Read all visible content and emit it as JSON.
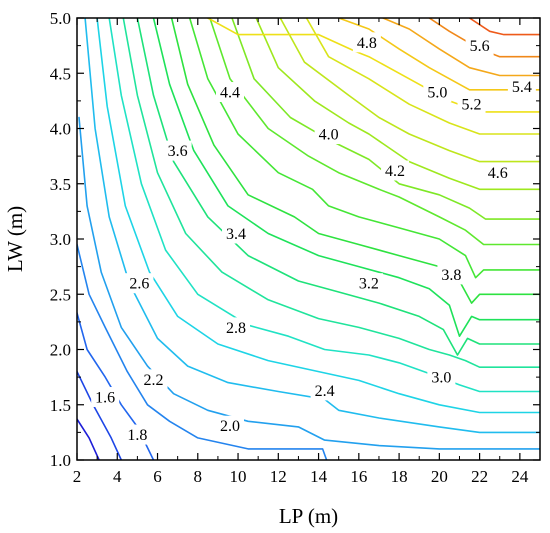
{
  "chart_data": {
    "type": "contour",
    "title": "",
    "xlabel": "LP (m)",
    "ylabel": "LW (m)",
    "xlim": [
      2,
      25
    ],
    "ylim": [
      1.0,
      5.0
    ],
    "x_ticks": [
      "2",
      "4",
      "6",
      "8",
      "10",
      "12",
      "14",
      "16",
      "18",
      "20",
      "22",
      "24"
    ],
    "y_ticks": [
      "1.0",
      "1.5",
      "2.0",
      "2.5",
      "3.0",
      "3.5",
      "4.0",
      "4.5",
      "5.0"
    ],
    "grid": false,
    "colormap": "blue-cyan-green-yellow-red",
    "level_step": 0.2,
    "contours": [
      {
        "level": 1.2,
        "color": "#1e1ed8",
        "points": [
          [
            2.0,
            1.37
          ],
          [
            2.6,
            1.2
          ],
          [
            3.1,
            1.0
          ]
        ]
      },
      {
        "level": 1.4,
        "color": "#1e46e6",
        "points": [
          [
            2.0,
            1.8
          ],
          [
            2.8,
            1.5
          ],
          [
            3.7,
            1.2
          ],
          [
            4.2,
            1.0
          ]
        ]
      },
      {
        "level": 1.6,
        "color": "#2266ee",
        "points": [
          [
            2.0,
            2.33
          ],
          [
            2.5,
            2.0
          ],
          [
            3.4,
            1.75
          ],
          [
            4.2,
            1.5
          ],
          [
            5.0,
            1.3
          ],
          [
            5.8,
            1.0
          ]
        ]
      },
      {
        "level": 1.8,
        "color": "#2484ee",
        "points": [
          [
            2.0,
            2.95
          ],
          [
            2.6,
            2.5
          ],
          [
            3.4,
            2.2
          ],
          [
            4.5,
            1.8
          ],
          [
            5.5,
            1.5
          ],
          [
            6.6,
            1.35
          ],
          [
            8.0,
            1.2
          ],
          [
            10.5,
            1.1
          ],
          [
            14.2,
            1.1
          ],
          [
            14.4,
            1.0
          ]
        ]
      },
      {
        "level": 2.0,
        "color": "#22a0ee",
        "points": [
          [
            2.1,
            4.1
          ],
          [
            2.5,
            3.3
          ],
          [
            3.2,
            2.7
          ],
          [
            4.2,
            2.2
          ],
          [
            5.5,
            1.85
          ],
          [
            6.8,
            1.6
          ],
          [
            8.5,
            1.45
          ],
          [
            10.5,
            1.35
          ],
          [
            13.0,
            1.3
          ],
          [
            14.3,
            1.18
          ],
          [
            17.0,
            1.13
          ],
          [
            20.0,
            1.1
          ],
          [
            25.0,
            1.1
          ]
        ]
      },
      {
        "level": 2.2,
        "color": "#20bcee",
        "points": [
          [
            2.4,
            5.0
          ],
          [
            2.9,
            4.0
          ],
          [
            3.6,
            3.2
          ],
          [
            4.6,
            2.6
          ],
          [
            6.0,
            2.1
          ],
          [
            7.5,
            1.85
          ],
          [
            9.5,
            1.7
          ],
          [
            12.0,
            1.62
          ],
          [
            14.3,
            1.55
          ],
          [
            15.0,
            1.45
          ],
          [
            17.0,
            1.38
          ],
          [
            20.0,
            1.3
          ],
          [
            22.0,
            1.25
          ],
          [
            25.0,
            1.25
          ]
        ]
      },
      {
        "level": 2.4,
        "color": "#1ed4e6",
        "points": [
          [
            3.0,
            5.0
          ],
          [
            3.5,
            4.2
          ],
          [
            4.4,
            3.3
          ],
          [
            5.6,
            2.7
          ],
          [
            7.0,
            2.3
          ],
          [
            9.0,
            2.05
          ],
          [
            11.5,
            1.9
          ],
          [
            14.0,
            1.8
          ],
          [
            16.0,
            1.72
          ],
          [
            18.0,
            1.6
          ],
          [
            20.0,
            1.5
          ],
          [
            22.0,
            1.43
          ],
          [
            25.0,
            1.43
          ]
        ]
      },
      {
        "level": 2.6,
        "color": "#20e2c4",
        "points": [
          [
            3.6,
            5.0
          ],
          [
            4.2,
            4.3
          ],
          [
            5.2,
            3.5
          ],
          [
            6.4,
            2.9
          ],
          [
            8.0,
            2.5
          ],
          [
            10.5,
            2.22
          ],
          [
            12.5,
            2.12
          ],
          [
            14.3,
            2.0
          ],
          [
            16.5,
            1.95
          ],
          [
            18.0,
            1.88
          ],
          [
            20.0,
            1.75
          ],
          [
            21.0,
            1.68
          ],
          [
            22.0,
            1.62
          ],
          [
            25.0,
            1.62
          ]
        ]
      },
      {
        "level": 2.8,
        "color": "#20e49c",
        "points": [
          [
            4.3,
            5.0
          ],
          [
            5.0,
            4.3
          ],
          [
            6.0,
            3.6
          ],
          [
            7.4,
            3.05
          ],
          [
            9.2,
            2.7
          ],
          [
            11.5,
            2.45
          ],
          [
            14.0,
            2.28
          ],
          [
            16.0,
            2.2
          ],
          [
            18.0,
            2.1
          ],
          [
            19.5,
            2.0
          ],
          [
            20.5,
            1.95
          ],
          [
            21.3,
            1.9
          ],
          [
            22.0,
            1.84
          ],
          [
            25.0,
            1.84
          ]
        ]
      },
      {
        "level": 3.0,
        "color": "#1ee27a",
        "points": [
          [
            5.0,
            5.0
          ],
          [
            5.8,
            4.3
          ],
          [
            6.8,
            3.7
          ],
          [
            8.5,
            3.2
          ],
          [
            10.5,
            2.85
          ],
          [
            13.0,
            2.62
          ],
          [
            15.0,
            2.52
          ],
          [
            17.0,
            2.42
          ],
          [
            19.0,
            2.3
          ],
          [
            20.2,
            2.18
          ],
          [
            20.9,
            1.95
          ],
          [
            21.4,
            2.1
          ],
          [
            22.0,
            2.05
          ],
          [
            25.0,
            2.05
          ]
        ]
      },
      {
        "level": 3.2,
        "color": "#1ee25a",
        "points": [
          [
            5.8,
            5.0
          ],
          [
            6.6,
            4.4
          ],
          [
            7.8,
            3.8
          ],
          [
            9.5,
            3.3
          ],
          [
            11.5,
            3.05
          ],
          [
            14.0,
            2.85
          ],
          [
            16.0,
            2.75
          ],
          [
            18.0,
            2.65
          ],
          [
            19.5,
            2.55
          ],
          [
            20.5,
            2.4
          ],
          [
            21.0,
            2.12
          ],
          [
            21.6,
            2.3
          ],
          [
            22.0,
            2.27
          ],
          [
            25.0,
            2.27
          ]
        ]
      },
      {
        "level": 3.4,
        "color": "#2ee240",
        "points": [
          [
            6.7,
            5.0
          ],
          [
            7.5,
            4.4
          ],
          [
            8.8,
            3.85
          ],
          [
            10.5,
            3.4
          ],
          [
            12.8,
            3.2
          ],
          [
            14.0,
            3.05
          ],
          [
            16.0,
            2.95
          ],
          [
            18.0,
            2.85
          ],
          [
            20.0,
            2.75
          ],
          [
            21.0,
            2.62
          ],
          [
            21.6,
            2.42
          ],
          [
            22.0,
            2.5
          ],
          [
            25.0,
            2.5
          ]
        ]
      },
      {
        "level": 3.6,
        "color": "#44e636",
        "points": [
          [
            7.6,
            5.0
          ],
          [
            8.5,
            4.45
          ],
          [
            10.0,
            3.95
          ],
          [
            12.0,
            3.6
          ],
          [
            13.7,
            3.45
          ],
          [
            14.5,
            3.3
          ],
          [
            16.0,
            3.2
          ],
          [
            18.0,
            3.1
          ],
          [
            20.0,
            3.0
          ],
          [
            21.3,
            2.85
          ],
          [
            21.8,
            2.65
          ],
          [
            22.2,
            2.72
          ],
          [
            25.0,
            2.72
          ]
        ]
      },
      {
        "level": 3.8,
        "color": "#5ee82e",
        "points": [
          [
            8.6,
            5.0
          ],
          [
            9.6,
            4.45
          ],
          [
            11.5,
            4.0
          ],
          [
            13.5,
            3.75
          ],
          [
            15.0,
            3.6
          ],
          [
            17.0,
            3.45
          ],
          [
            18.0,
            3.38
          ],
          [
            20.0,
            3.2
          ],
          [
            21.3,
            3.08
          ],
          [
            22.2,
            2.95
          ],
          [
            25.0,
            2.95
          ]
        ]
      },
      {
        "level": 4.0,
        "color": "#7ee826",
        "points": [
          [
            9.7,
            5.0
          ],
          [
            10.8,
            4.45
          ],
          [
            12.6,
            4.1
          ],
          [
            14.5,
            3.9
          ],
          [
            16.5,
            3.72
          ],
          [
            18.0,
            3.5
          ],
          [
            20.0,
            3.4
          ],
          [
            21.5,
            3.28
          ],
          [
            22.3,
            3.18
          ],
          [
            25.0,
            3.18
          ]
        ]
      },
      {
        "level": 4.2,
        "color": "#9ee81e",
        "points": [
          [
            10.9,
            5.0
          ],
          [
            12.0,
            4.55
          ],
          [
            13.8,
            4.25
          ],
          [
            15.5,
            4.05
          ],
          [
            16.5,
            3.95
          ],
          [
            18.5,
            3.7
          ],
          [
            20.5,
            3.55
          ],
          [
            22.0,
            3.45
          ],
          [
            25.0,
            3.45
          ]
        ]
      },
      {
        "level": 4.4,
        "color": "#bee61c",
        "points": [
          [
            12.1,
            5.0
          ],
          [
            13.3,
            4.6
          ],
          [
            15.5,
            4.3
          ],
          [
            17.0,
            4.1
          ],
          [
            18.5,
            3.95
          ],
          [
            20.5,
            3.8
          ],
          [
            22.0,
            3.7
          ],
          [
            25.0,
            3.7
          ]
        ]
      },
      {
        "level": 4.6,
        "color": "#d8e41a",
        "points": [
          [
            13.4,
            5.0
          ],
          [
            14.5,
            4.65
          ],
          [
            16.5,
            4.45
          ],
          [
            18.5,
            4.22
          ],
          [
            20.5,
            4.05
          ],
          [
            22.0,
            3.95
          ],
          [
            25.0,
            3.95
          ]
        ]
      },
      {
        "level": 4.8,
        "color": "#eee018",
        "points": [
          [
            8.5,
            5.0
          ],
          [
            10.0,
            4.85
          ],
          [
            13.0,
            4.85
          ],
          [
            14.0,
            4.85
          ],
          [
            15.8,
            4.7
          ],
          [
            16.5,
            4.65
          ],
          [
            18.5,
            4.45
          ],
          [
            20.5,
            4.25
          ],
          [
            22.0,
            4.15
          ],
          [
            25.0,
            4.15
          ]
        ]
      },
      {
        "level": 5.0,
        "color": "#f4c818",
        "points": [
          [
            15.0,
            5.0
          ],
          [
            16.5,
            4.9
          ],
          [
            18.0,
            4.72
          ],
          [
            19.5,
            4.55
          ],
          [
            21.5,
            4.35
          ],
          [
            25.0,
            4.35
          ]
        ]
      },
      {
        "level": 5.2,
        "color": "#f4a81a",
        "points": [
          [
            17.2,
            5.0
          ],
          [
            18.5,
            4.9
          ],
          [
            20.0,
            4.72
          ],
          [
            21.5,
            4.55
          ],
          [
            23.0,
            4.48
          ],
          [
            25.0,
            4.48
          ]
        ]
      },
      {
        "level": 5.4,
        "color": "#f0881a",
        "points": [
          [
            19.5,
            5.0
          ],
          [
            20.5,
            4.88
          ],
          [
            22.0,
            4.72
          ],
          [
            23.0,
            4.65
          ],
          [
            25.0,
            4.65
          ]
        ]
      },
      {
        "level": 5.6,
        "color": "#ee5a1a",
        "points": [
          [
            21.5,
            5.0
          ],
          [
            22.5,
            4.88
          ],
          [
            23.2,
            4.85
          ],
          [
            25.0,
            4.85
          ]
        ]
      }
    ],
    "contour_labels": [
      {
        "text": "1.6",
        "x": 3.4,
        "y": 1.57
      },
      {
        "text": "1.8",
        "x": 5.0,
        "y": 1.23
      },
      {
        "text": "2.0",
        "x": 9.6,
        "y": 1.31
      },
      {
        "text": "2.2",
        "x": 5.8,
        "y": 1.73
      },
      {
        "text": "2.4",
        "x": 14.3,
        "y": 1.63
      },
      {
        "text": "2.6",
        "x": 5.1,
        "y": 2.6
      },
      {
        "text": "2.8",
        "x": 9.9,
        "y": 2.2
      },
      {
        "text": "3.0",
        "x": 20.1,
        "y": 1.75
      },
      {
        "text": "3.2",
        "x": 16.5,
        "y": 2.6
      },
      {
        "text": "3.4",
        "x": 9.9,
        "y": 3.05
      },
      {
        "text": "3.6",
        "x": 7.0,
        "y": 3.8
      },
      {
        "text": "3.8",
        "x": 20.6,
        "y": 2.68
      },
      {
        "text": "4.0",
        "x": 14.5,
        "y": 3.95
      },
      {
        "text": "4.2",
        "x": 17.8,
        "y": 3.62
      },
      {
        "text": "4.4",
        "x": 9.6,
        "y": 4.33
      },
      {
        "text": "4.6",
        "x": 22.9,
        "y": 3.6
      },
      {
        "text": "4.8",
        "x": 16.4,
        "y": 4.78
      },
      {
        "text": "5.0",
        "x": 19.9,
        "y": 4.33
      },
      {
        "text": "5.2",
        "x": 21.6,
        "y": 4.22
      },
      {
        "text": "5.4",
        "x": 24.1,
        "y": 4.38
      },
      {
        "text": "5.6",
        "x": 22.0,
        "y": 4.75
      }
    ]
  }
}
